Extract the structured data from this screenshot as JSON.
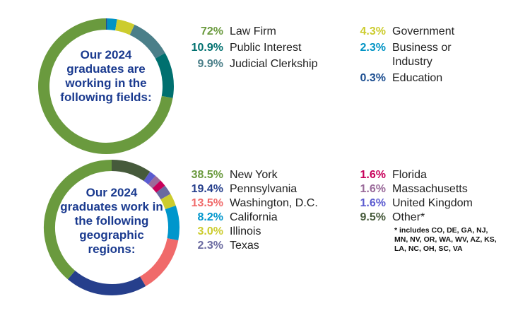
{
  "chart_data": [
    {
      "type": "pie",
      "donut": true,
      "title": "Our 2024 graduates are working in the following fields:",
      "slices": [
        {
          "label": "Education",
          "pct_text": "0.3%",
          "value": 0.3,
          "color": "#1d4f91"
        },
        {
          "label": "Business or Industry",
          "pct_text": "2.3%",
          "value": 2.3,
          "color": "#0093c4"
        },
        {
          "label": "Government",
          "pct_text": "4.3%",
          "value": 4.3,
          "color": "#cccc2e"
        },
        {
          "label": "Judicial Clerkship",
          "pct_text": "9.9%",
          "value": 9.9,
          "color": "#4b7f89"
        },
        {
          "label": "Public Interest",
          "pct_text": "10.9%",
          "value": 10.9,
          "color": "#00706f"
        },
        {
          "label": "Law Firm",
          "pct_text": "72%",
          "value": 72,
          "color": "#6a9a3e"
        }
      ]
    },
    {
      "type": "pie",
      "donut": true,
      "title": "Our 2024 graduates work in the following geographic regions:",
      "slices": [
        {
          "label": "Other*",
          "pct_text": "9.5%",
          "value": 9.5,
          "color": "#465a3b"
        },
        {
          "label": "United Kingdom",
          "pct_text": "1.6%",
          "value": 1.6,
          "color": "#5b5bd0"
        },
        {
          "label": "Massachusetts",
          "pct_text": "1.6%",
          "value": 1.6,
          "color": "#9a6a9a"
        },
        {
          "label": "Florida",
          "pct_text": "1.6%",
          "value": 1.6,
          "color": "#c8005a"
        },
        {
          "label": "Texas",
          "pct_text": "2.3%",
          "value": 2.3,
          "color": "#6a6aa0"
        },
        {
          "label": "Illinois",
          "pct_text": "3.0%",
          "value": 3.0,
          "color": "#cccc2e"
        },
        {
          "label": "California",
          "pct_text": "8.2%",
          "value": 8.2,
          "color": "#0096cc"
        },
        {
          "label": "Washington, D.C.",
          "pct_text": "13.5%",
          "value": 13.5,
          "color": "#f06a6a"
        },
        {
          "label": "Pennsylvania",
          "pct_text": "19.4%",
          "value": 19.4,
          "color": "#263f8c"
        },
        {
          "label": "New York",
          "pct_text": "38.5%",
          "value": 38.5,
          "color": "#6a9a3e"
        }
      ],
      "footnote": "* includes CO, DE, GA, NJ, MN, NV, OR, WA, WV, AZ, KS, LA, NC, OH, SC, VA"
    }
  ]
}
